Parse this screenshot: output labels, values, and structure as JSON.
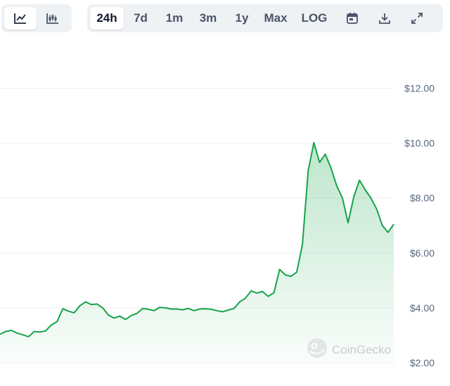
{
  "toolbar": {
    "chart_types": [
      {
        "icon": "line-chart-icon",
        "active": true
      },
      {
        "icon": "candlestick-chart-icon",
        "active": false
      }
    ],
    "ranges": [
      {
        "label": "24h",
        "active": true
      },
      {
        "label": "7d",
        "active": false
      },
      {
        "label": "1m",
        "active": false
      },
      {
        "label": "3m",
        "active": false
      },
      {
        "label": "1y",
        "active": false
      },
      {
        "label": "Max",
        "active": false
      }
    ],
    "log_label": "LOG",
    "icons": [
      "calendar-icon",
      "download-icon",
      "expand-icon"
    ]
  },
  "watermark": "CoinGecko",
  "colors": {
    "line": "#16a34a",
    "fill_top": "#16a34a",
    "grid": "#eceff3",
    "tick_text": "#58667e",
    "toolbar_bg": "#eff2f5"
  },
  "chart_data": {
    "type": "area",
    "title": "",
    "xlabel": "",
    "ylabel": "",
    "ylim": [
      2,
      12.5
    ],
    "y_ticks": [
      "$12.00",
      "$10.00",
      "$8.00",
      "$6.00",
      "$4.00",
      "$2.00"
    ],
    "y_tick_values": [
      12,
      10,
      8,
      6,
      4,
      2
    ],
    "grid": true,
    "x_ticks": [],
    "series": [
      {
        "values": [
          3.04,
          3.14,
          3.18,
          3.08,
          3.02,
          2.95,
          3.14,
          3.12,
          3.16,
          3.38,
          3.5,
          3.97,
          3.88,
          3.82,
          4.08,
          4.22,
          4.12,
          4.14,
          4.0,
          3.74,
          3.63,
          3.7,
          3.58,
          3.72,
          3.8,
          3.98,
          3.95,
          3.9,
          4.02,
          4.0,
          3.96,
          3.96,
          3.93,
          3.98,
          3.9,
          3.96,
          3.97,
          3.95,
          3.9,
          3.86,
          3.92,
          3.98,
          4.22,
          4.35,
          4.62,
          4.54,
          4.6,
          4.42,
          4.55,
          5.4,
          5.2,
          5.15,
          5.3,
          6.3,
          9.0,
          10.02,
          9.3,
          9.6,
          9.1,
          8.45,
          8.0,
          7.1,
          8.05,
          8.65,
          8.3,
          8.0,
          7.6,
          7.0,
          6.75,
          7.05
        ]
      }
    ]
  }
}
